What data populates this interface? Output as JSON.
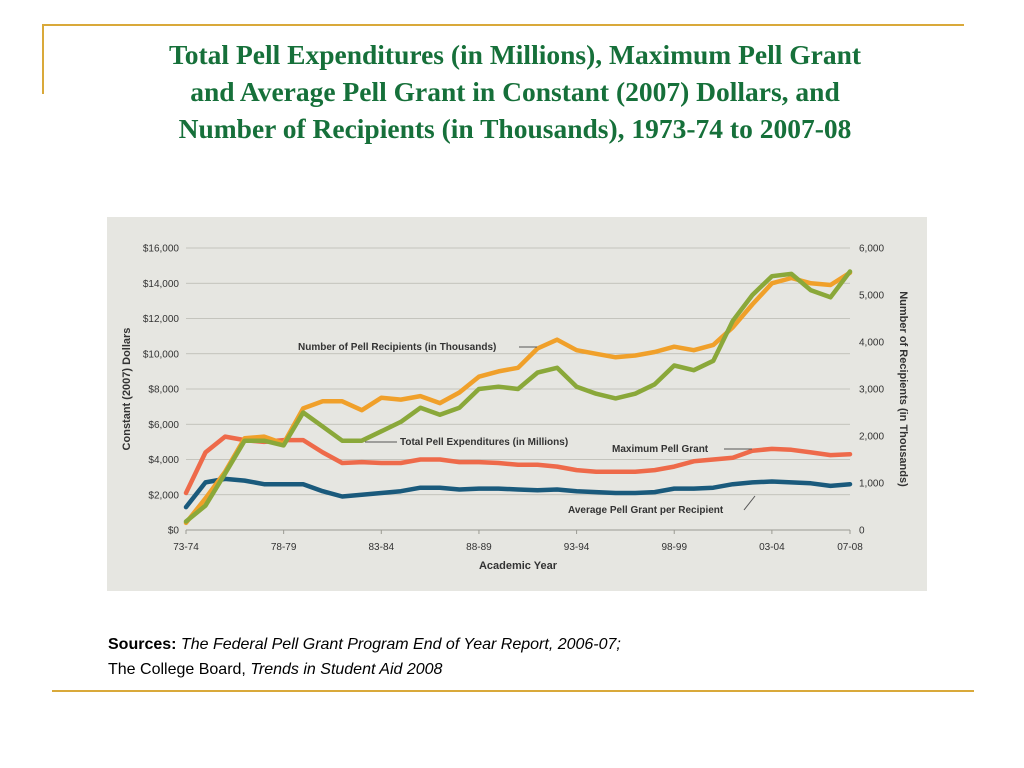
{
  "slide": {
    "title_lines": [
      "Total Pell Expenditures (in Millions), Maximum Pell Grant",
      "and Average Pell Grant in Constant (2007) Dollars, and",
      "Number of Recipients (in Thousands), 1973-74 to 2007-08"
    ],
    "sources": {
      "label": "Sources:",
      "source1": "The Federal Pell Grant Program End of Year Report, 2006-07;",
      "source2_prefix": "The College Board,",
      "source2_title": "Trends in Student Aid 2008"
    }
  },
  "colors": {
    "title": "#16703a",
    "frame": "#d9a93a",
    "panel": "#e6e6e1",
    "expenditures": "#f0a02a",
    "max_grant": "#ee6a4a",
    "avg_grant": "#1a5a7c",
    "recipients": "#8aa83a"
  },
  "chart_data": {
    "type": "line",
    "xlabel": "Academic Year",
    "ylabel_left": "Constant (2007) Dollars",
    "ylabel_right": "Number of Recipients (in Thousands)",
    "ylim_left": [
      0,
      16000
    ],
    "ylim_right": [
      0,
      6000
    ],
    "left_ticks": [
      "$0",
      "$2,000",
      "$4,000",
      "$6,000",
      "$8,000",
      "$10,000",
      "$12,000",
      "$14,000",
      "$16,000"
    ],
    "right_ticks": [
      "0",
      "1,000",
      "2,000",
      "3,000",
      "4,000",
      "5,000",
      "6,000"
    ],
    "x_tick_labels": [
      "73-74",
      "78-79",
      "83-84",
      "88-89",
      "93-94",
      "98-99",
      "03-04",
      "07-08"
    ],
    "x": [
      "73-74",
      "74-75",
      "75-76",
      "76-77",
      "77-78",
      "78-79",
      "79-80",
      "80-81",
      "81-82",
      "82-83",
      "83-84",
      "84-85",
      "85-86",
      "86-87",
      "87-88",
      "88-89",
      "89-90",
      "90-91",
      "91-92",
      "92-93",
      "93-94",
      "94-95",
      "95-96",
      "96-97",
      "97-98",
      "98-99",
      "99-00",
      "00-01",
      "01-02",
      "02-03",
      "03-04",
      "04-05",
      "05-06",
      "06-07",
      "07-08"
    ],
    "grid": true,
    "series": [
      {
        "name": "Total Pell Expenditures (in Millions)",
        "axis": "left",
        "values": [
          400,
          1800,
          3300,
          5200,
          5300,
          4900,
          6900,
          7300,
          7300,
          6800,
          7500,
          7400,
          7600,
          7200,
          7800,
          8700,
          9000,
          9200,
          10300,
          10800,
          10200,
          10000,
          9800,
          9900,
          10100,
          10400,
          10200,
          10500,
          11500,
          12800,
          14000,
          14300,
          14000,
          13900,
          14600
        ]
      },
      {
        "name": "Maximum Pell Grant",
        "axis": "left",
        "values": [
          2100,
          4400,
          5300,
          5100,
          5000,
          5100,
          5100,
          4400,
          3800,
          3850,
          3800,
          3800,
          4000,
          4000,
          3850,
          3850,
          3800,
          3700,
          3700,
          3600,
          3400,
          3300,
          3300,
          3300,
          3400,
          3600,
          3900,
          4000,
          4100,
          4500,
          4600,
          4550,
          4400,
          4250,
          4300
        ]
      },
      {
        "name": "Average Pell Grant per Recipient",
        "axis": "left",
        "values": [
          1300,
          2700,
          2900,
          2800,
          2600,
          2600,
          2600,
          2200,
          1900,
          2000,
          2100,
          2200,
          2400,
          2400,
          2300,
          2350,
          2350,
          2300,
          2250,
          2300,
          2200,
          2150,
          2100,
          2100,
          2150,
          2350,
          2350,
          2400,
          2600,
          2700,
          2750,
          2700,
          2650,
          2500,
          2600
        ]
      },
      {
        "name": "Number of Pell Recipients (in Thousands)",
        "axis": "right",
        "values": [
          180,
          520,
          1200,
          1900,
          1900,
          1800,
          2500,
          2200,
          1900,
          1900,
          2100,
          2300,
          2600,
          2450,
          2600,
          3000,
          3050,
          3000,
          3350,
          3450,
          3050,
          2900,
          2800,
          2900,
          3100,
          3500,
          3400,
          3600,
          4450,
          5000,
          5400,
          5450,
          5100,
          4950,
          5500
        ]
      }
    ],
    "annotations": [
      "Number of Pell Recipients (in Thousands)",
      "Total Pell Expenditures (in Millions)",
      "Maximum Pell Grant",
      "Average Pell Grant per Recipient"
    ]
  }
}
